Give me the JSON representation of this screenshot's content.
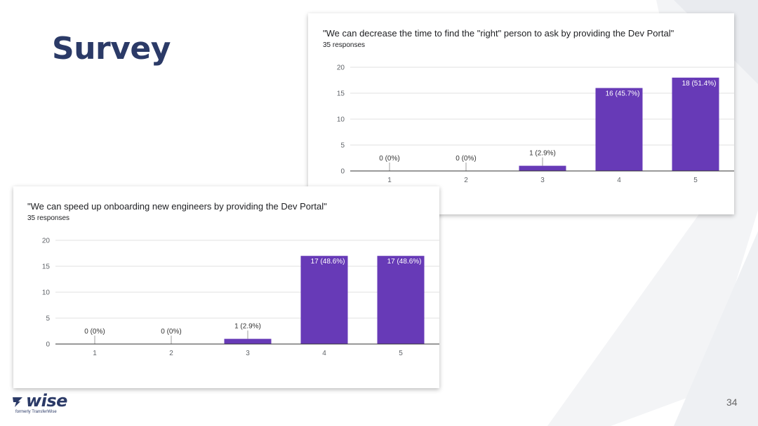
{
  "slide": {
    "title": "Survey",
    "page_number": "34"
  },
  "logo": {
    "name": "wise",
    "tagline": "formerly TransferWise",
    "color": "#2b3a67"
  },
  "colors": {
    "bar": "#673ab7",
    "title": "#2b3a67",
    "grid": "#e0e0e0",
    "axis": "#333333"
  },
  "chart_data": [
    {
      "type": "bar",
      "title": "\"We can decrease the time to find the \"right\" person to ask by providing the Dev Portal\"",
      "subtitle": "35 responses",
      "categories": [
        "1",
        "2",
        "3",
        "4",
        "5"
      ],
      "values": [
        0,
        0,
        1,
        16,
        18
      ],
      "data_labels": [
        "0 (0%)",
        "0 (0%)",
        "1 (2.9%)",
        "16 (45.7%)",
        "18 (51.4%)"
      ],
      "yticks": [
        "0",
        "5",
        "10",
        "15",
        "20"
      ],
      "ylim": [
        0,
        20
      ],
      "grid": true,
      "xlabel": "",
      "ylabel": ""
    },
    {
      "type": "bar",
      "title": "\"We can speed up onboarding new engineers by providing the Dev Portal\"",
      "subtitle": "35 responses",
      "categories": [
        "1",
        "2",
        "3",
        "4",
        "5"
      ],
      "values": [
        0,
        0,
        1,
        17,
        17
      ],
      "data_labels": [
        "0 (0%)",
        "0 (0%)",
        "1 (2.9%)",
        "17 (48.6%)",
        "17 (48.6%)"
      ],
      "yticks": [
        "0",
        "5",
        "10",
        "15",
        "20"
      ],
      "ylim": [
        0,
        20
      ],
      "grid": true,
      "xlabel": "",
      "ylabel": ""
    }
  ]
}
